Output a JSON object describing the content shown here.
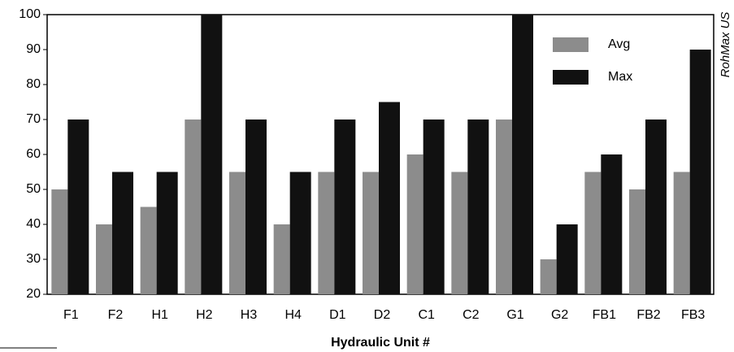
{
  "chart_data": {
    "type": "bar",
    "x_label": "Hydraulic Unit #",
    "side_note": "RohMax US",
    "categories": [
      "F1",
      "F2",
      "H1",
      "H2",
      "H3",
      "H4",
      "D1",
      "D2",
      "C1",
      "C2",
      "G1",
      "G2",
      "FB1",
      "FB2",
      "FB3"
    ],
    "series": [
      {
        "name": "Avg",
        "color": "#8c8c8c",
        "values": [
          50,
          40,
          45,
          70,
          55,
          40,
          55,
          55,
          60,
          55,
          70,
          30,
          55,
          50,
          55
        ]
      },
      {
        "name": "Max",
        "color": "#111111",
        "values": [
          70,
          55,
          55,
          100,
          70,
          55,
          70,
          75,
          70,
          70,
          100,
          40,
          60,
          70,
          90
        ]
      }
    ],
    "ylim": [
      20,
      100
    ],
    "yticks": [
      20,
      30,
      40,
      50,
      60,
      70,
      80,
      90,
      100
    ],
    "legend": "top-right"
  }
}
